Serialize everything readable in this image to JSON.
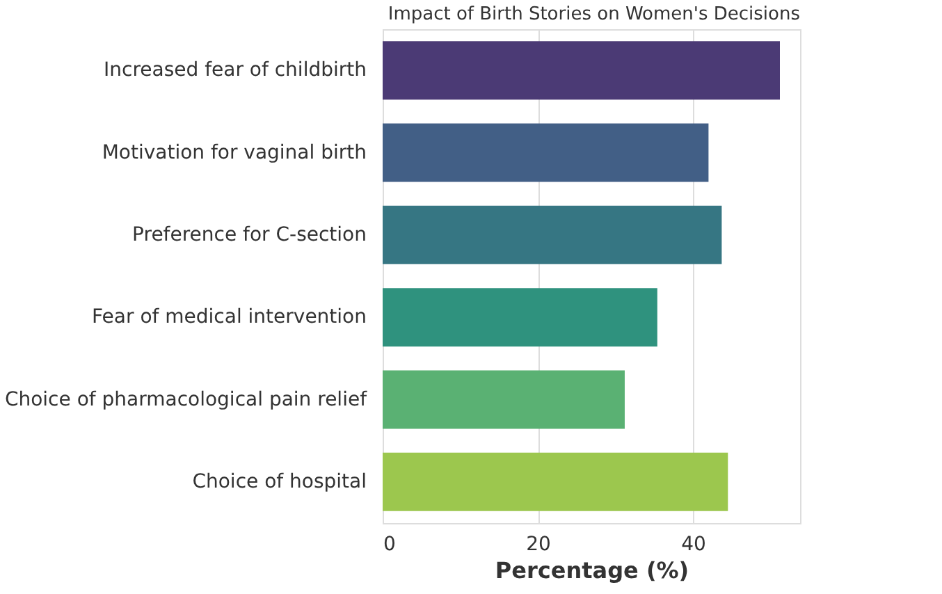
{
  "chart_data": {
    "type": "bar",
    "orientation": "horizontal",
    "title": "Impact of Birth Stories on Women's Decisions",
    "xlabel": "Percentage (%)",
    "categories": [
      "Increased fear of childbirth",
      "Motivation for vaginal birth",
      "Preference for C-section",
      "Fear of medical intervention",
      "Choice of pharmacological pain relief",
      "Choice of hospital"
    ],
    "values": [
      51.2,
      42.0,
      43.7,
      35.4,
      31.2,
      44.5
    ],
    "colors": [
      "#4b3a75",
      "#425f86",
      "#367683",
      "#2f927e",
      "#5ab173",
      "#9cc74e"
    ],
    "xlim": [
      0,
      53.8
    ],
    "xticks": [
      0,
      20,
      40
    ],
    "grid": "x"
  }
}
